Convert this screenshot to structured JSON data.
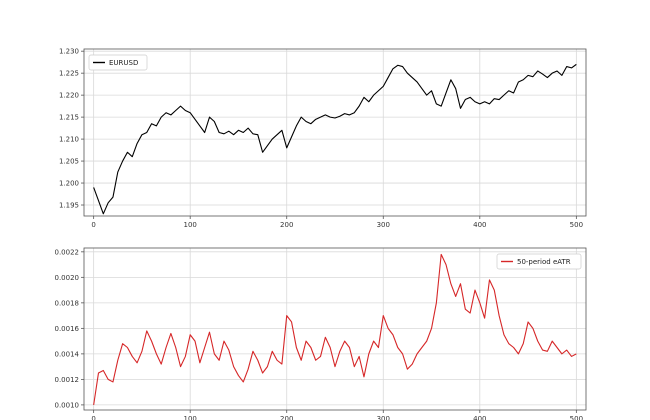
{
  "chart_data": [
    {
      "type": "line",
      "x_range": [
        0,
        500
      ],
      "ylim": [
        1.1925,
        1.2305
      ],
      "xlim": [
        -10,
        510
      ],
      "x_ticks": [
        0,
        100,
        200,
        300,
        400,
        500
      ],
      "y_ticks": [
        1.195,
        1.2,
        1.205,
        1.21,
        1.215,
        1.22,
        1.225,
        1.23
      ],
      "x_tick_labels": [
        "0",
        "100",
        "200",
        "300",
        "400",
        "500"
      ],
      "y_tick_labels": [
        "1.195",
        "1.200",
        "1.205",
        "1.210",
        "1.215",
        "1.220",
        "1.225",
        "1.230"
      ],
      "grid": true,
      "legend_position": "top-left",
      "series": [
        {
          "name": "EURUSD",
          "color": "#000000",
          "x": [
            0,
            5,
            10,
            15,
            20,
            25,
            30,
            35,
            40,
            45,
            50,
            55,
            60,
            65,
            70,
            75,
            80,
            85,
            90,
            95,
            100,
            105,
            110,
            115,
            120,
            125,
            130,
            135,
            140,
            145,
            150,
            155,
            160,
            165,
            170,
            175,
            180,
            185,
            190,
            195,
            200,
            205,
            210,
            215,
            220,
            225,
            230,
            235,
            240,
            245,
            250,
            255,
            260,
            265,
            270,
            275,
            280,
            285,
            290,
            295,
            300,
            305,
            310,
            315,
            320,
            325,
            330,
            335,
            340,
            345,
            350,
            355,
            360,
            365,
            370,
            375,
            380,
            385,
            390,
            395,
            400,
            405,
            410,
            415,
            420,
            425,
            430,
            435,
            440,
            445,
            450,
            455,
            460,
            465,
            470,
            475,
            480,
            485,
            490,
            495,
            500
          ],
          "values": [
            1.199,
            1.196,
            1.193,
            1.1955,
            1.1968,
            1.2025,
            1.205,
            1.207,
            1.206,
            1.209,
            1.211,
            1.2115,
            1.2135,
            1.213,
            1.215,
            1.216,
            1.2155,
            1.2165,
            1.2175,
            1.2165,
            1.216,
            1.2145,
            1.213,
            1.2115,
            1.215,
            1.214,
            1.2115,
            1.2112,
            1.2118,
            1.211,
            1.212,
            1.2115,
            1.2125,
            1.2112,
            1.211,
            1.207,
            1.2085,
            1.21,
            1.211,
            1.212,
            1.208,
            1.2105,
            1.213,
            1.215,
            1.214,
            1.2135,
            1.2145,
            1.215,
            1.2155,
            1.215,
            1.2148,
            1.2152,
            1.2158,
            1.2155,
            1.216,
            1.2175,
            1.2195,
            1.2185,
            1.22,
            1.221,
            1.222,
            1.224,
            1.226,
            1.2268,
            1.2265,
            1.225,
            1.224,
            1.223,
            1.2215,
            1.22,
            1.221,
            1.218,
            1.2175,
            1.2205,
            1.2235,
            1.2215,
            1.217,
            1.219,
            1.2195,
            1.2185,
            1.218,
            1.2185,
            1.218,
            1.2192,
            1.219,
            1.22,
            1.221,
            1.2205,
            1.223,
            1.2235,
            1.2245,
            1.2242,
            1.2255,
            1.2248,
            1.224,
            1.225,
            1.2255,
            1.2245,
            1.2265,
            1.2262,
            1.227
          ]
        }
      ]
    },
    {
      "type": "line",
      "x_range": [
        0,
        500
      ],
      "ylim": [
        0.00096,
        0.00223
      ],
      "xlim": [
        -10,
        510
      ],
      "x_ticks": [
        0,
        100,
        200,
        300,
        400,
        500
      ],
      "y_ticks": [
        0.001,
        0.0012,
        0.0014,
        0.0016,
        0.0018,
        0.002,
        0.0022
      ],
      "x_tick_labels": [
        "0",
        "100",
        "200",
        "300",
        "400",
        "500"
      ],
      "y_tick_labels": [
        "0.0010",
        "0.0012",
        "0.0014",
        "0.0016",
        "0.0018",
        "0.0020",
        "0.0022"
      ],
      "grid": true,
      "legend_position": "top-right",
      "series": [
        {
          "name": "50-period eATR",
          "color": "#d62728",
          "x": [
            0,
            5,
            10,
            15,
            20,
            25,
            30,
            35,
            40,
            45,
            50,
            55,
            60,
            65,
            70,
            75,
            80,
            85,
            90,
            95,
            100,
            105,
            110,
            115,
            120,
            125,
            130,
            135,
            140,
            145,
            150,
            155,
            160,
            165,
            170,
            175,
            180,
            185,
            190,
            195,
            200,
            205,
            210,
            215,
            220,
            225,
            230,
            235,
            240,
            245,
            250,
            255,
            260,
            265,
            270,
            275,
            280,
            285,
            290,
            295,
            300,
            305,
            310,
            315,
            320,
            325,
            330,
            335,
            340,
            345,
            350,
            355,
            360,
            365,
            370,
            375,
            380,
            385,
            390,
            395,
            400,
            405,
            410,
            415,
            420,
            425,
            430,
            435,
            440,
            445,
            450,
            455,
            460,
            465,
            470,
            475,
            480,
            485,
            490,
            495,
            500
          ],
          "values": [
            0.001,
            0.00125,
            0.00127,
            0.0012,
            0.00118,
            0.00135,
            0.00148,
            0.00145,
            0.00138,
            0.00133,
            0.00142,
            0.00158,
            0.0015,
            0.0014,
            0.00132,
            0.00145,
            0.00156,
            0.00145,
            0.0013,
            0.00138,
            0.00155,
            0.0015,
            0.00133,
            0.00145,
            0.00157,
            0.0014,
            0.00135,
            0.0015,
            0.00143,
            0.0013,
            0.00123,
            0.00118,
            0.00128,
            0.00142,
            0.00135,
            0.00125,
            0.0013,
            0.00142,
            0.00135,
            0.00132,
            0.0017,
            0.00165,
            0.00145,
            0.00135,
            0.0015,
            0.00145,
            0.00135,
            0.00138,
            0.00153,
            0.00145,
            0.0013,
            0.00142,
            0.0015,
            0.00145,
            0.0013,
            0.00138,
            0.00122,
            0.0014,
            0.0015,
            0.00145,
            0.0017,
            0.0016,
            0.00155,
            0.00145,
            0.0014,
            0.00128,
            0.00132,
            0.0014,
            0.00145,
            0.0015,
            0.0016,
            0.0018,
            0.00218,
            0.0021,
            0.00195,
            0.00185,
            0.00195,
            0.00175,
            0.00172,
            0.0019,
            0.0018,
            0.00168,
            0.00198,
            0.0019,
            0.0017,
            0.00155,
            0.00148,
            0.00145,
            0.0014,
            0.00148,
            0.00165,
            0.0016,
            0.0015,
            0.00143,
            0.00142,
            0.0015,
            0.00145,
            0.0014,
            0.00143,
            0.00138,
            0.0014
          ]
        }
      ]
    }
  ]
}
